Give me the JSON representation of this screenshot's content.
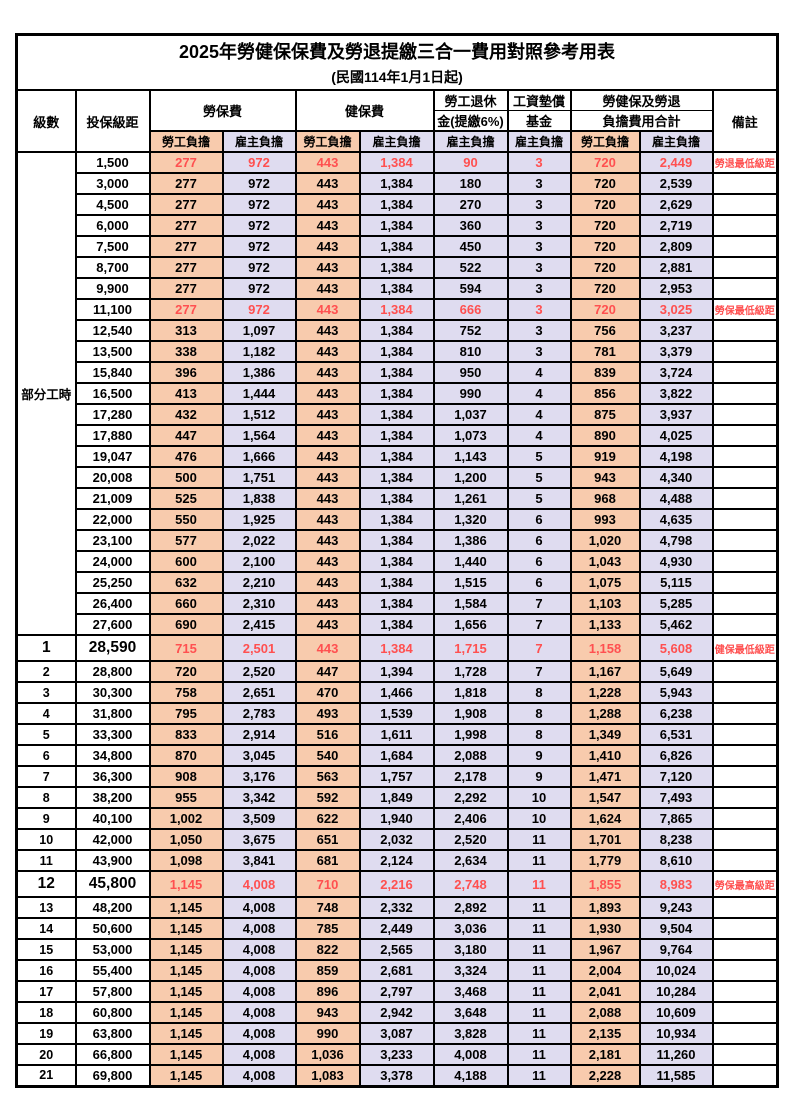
{
  "title": "2025年勞健保保費及勞退提繳三合一費用對照參考用表",
  "subtitle": "(民國114年1月1日起)",
  "header": {
    "grade": "級數",
    "bracket": "投保級距",
    "labor": "勞保費",
    "health": "健保費",
    "pension_line1": "勞工退休",
    "pension_line2": "金(提繳6%)",
    "wage_fund_line1": "工資墊償",
    "wage_fund_line2": "基金",
    "total_line1": "勞健保及勞退",
    "total_line2": "負擔費用合計",
    "remark": "備註",
    "employee": "勞工負擔",
    "employer": "雇主負擔"
  },
  "colors": {
    "employee_bg": "#F8CBAD",
    "employer_bg": "#DFDCF0",
    "highlight_text": "#FF5050",
    "border": "#000000"
  },
  "rows": [
    {
      "grade": "部分工時",
      "grade_rowspan": 23,
      "bracket": "1,500",
      "labor_emp": "277",
      "labor_er": "972",
      "health_emp": "443",
      "health_er": "1,384",
      "pension_er": "90",
      "fund_er": "3",
      "total_emp": "720",
      "total_er": "2,449",
      "remark": "勞退最低級距",
      "red": true
    },
    {
      "bracket": "3,000",
      "labor_emp": "277",
      "labor_er": "972",
      "health_emp": "443",
      "health_er": "1,384",
      "pension_er": "180",
      "fund_er": "3",
      "total_emp": "720",
      "total_er": "2,539"
    },
    {
      "bracket": "4,500",
      "labor_emp": "277",
      "labor_er": "972",
      "health_emp": "443",
      "health_er": "1,384",
      "pension_er": "270",
      "fund_er": "3",
      "total_emp": "720",
      "total_er": "2,629"
    },
    {
      "bracket": "6,000",
      "labor_emp": "277",
      "labor_er": "972",
      "health_emp": "443",
      "health_er": "1,384",
      "pension_er": "360",
      "fund_er": "3",
      "total_emp": "720",
      "total_er": "2,719"
    },
    {
      "bracket": "7,500",
      "labor_emp": "277",
      "labor_er": "972",
      "health_emp": "443",
      "health_er": "1,384",
      "pension_er": "450",
      "fund_er": "3",
      "total_emp": "720",
      "total_er": "2,809"
    },
    {
      "bracket": "8,700",
      "labor_emp": "277",
      "labor_er": "972",
      "health_emp": "443",
      "health_er": "1,384",
      "pension_er": "522",
      "fund_er": "3",
      "total_emp": "720",
      "total_er": "2,881"
    },
    {
      "bracket": "9,900",
      "labor_emp": "277",
      "labor_er": "972",
      "health_emp": "443",
      "health_er": "1,384",
      "pension_er": "594",
      "fund_er": "3",
      "total_emp": "720",
      "total_er": "2,953"
    },
    {
      "bracket": "11,100",
      "labor_emp": "277",
      "labor_er": "972",
      "health_emp": "443",
      "health_er": "1,384",
      "pension_er": "666",
      "fund_er": "3",
      "total_emp": "720",
      "total_er": "3,025",
      "remark": "勞保最低級距",
      "red": true
    },
    {
      "bracket": "12,540",
      "labor_emp": "313",
      "labor_er": "1,097",
      "health_emp": "443",
      "health_er": "1,384",
      "pension_er": "752",
      "fund_er": "3",
      "total_emp": "756",
      "total_er": "3,237"
    },
    {
      "bracket": "13,500",
      "labor_emp": "338",
      "labor_er": "1,182",
      "health_emp": "443",
      "health_er": "1,384",
      "pension_er": "810",
      "fund_er": "3",
      "total_emp": "781",
      "total_er": "3,379"
    },
    {
      "bracket": "15,840",
      "labor_emp": "396",
      "labor_er": "1,386",
      "health_emp": "443",
      "health_er": "1,384",
      "pension_er": "950",
      "fund_er": "4",
      "total_emp": "839",
      "total_er": "3,724"
    },
    {
      "bracket": "16,500",
      "labor_emp": "413",
      "labor_er": "1,444",
      "health_emp": "443",
      "health_er": "1,384",
      "pension_er": "990",
      "fund_er": "4",
      "total_emp": "856",
      "total_er": "3,822"
    },
    {
      "bracket": "17,280",
      "labor_emp": "432",
      "labor_er": "1,512",
      "health_emp": "443",
      "health_er": "1,384",
      "pension_er": "1,037",
      "fund_er": "4",
      "total_emp": "875",
      "total_er": "3,937"
    },
    {
      "bracket": "17,880",
      "labor_emp": "447",
      "labor_er": "1,564",
      "health_emp": "443",
      "health_er": "1,384",
      "pension_er": "1,073",
      "fund_er": "4",
      "total_emp": "890",
      "total_er": "4,025"
    },
    {
      "bracket": "19,047",
      "labor_emp": "476",
      "labor_er": "1,666",
      "health_emp": "443",
      "health_er": "1,384",
      "pension_er": "1,143",
      "fund_er": "5",
      "total_emp": "919",
      "total_er": "4,198"
    },
    {
      "bracket": "20,008",
      "labor_emp": "500",
      "labor_er": "1,751",
      "health_emp": "443",
      "health_er": "1,384",
      "pension_er": "1,200",
      "fund_er": "5",
      "total_emp": "943",
      "total_er": "4,340"
    },
    {
      "bracket": "21,009",
      "labor_emp": "525",
      "labor_er": "1,838",
      "health_emp": "443",
      "health_er": "1,384",
      "pension_er": "1,261",
      "fund_er": "5",
      "total_emp": "968",
      "total_er": "4,488"
    },
    {
      "bracket": "22,000",
      "labor_emp": "550",
      "labor_er": "1,925",
      "health_emp": "443",
      "health_er": "1,384",
      "pension_er": "1,320",
      "fund_er": "6",
      "total_emp": "993",
      "total_er": "4,635"
    },
    {
      "bracket": "23,100",
      "labor_emp": "577",
      "labor_er": "2,022",
      "health_emp": "443",
      "health_er": "1,384",
      "pension_er": "1,386",
      "fund_er": "6",
      "total_emp": "1,020",
      "total_er": "4,798"
    },
    {
      "bracket": "24,000",
      "labor_emp": "600",
      "labor_er": "2,100",
      "health_emp": "443",
      "health_er": "1,384",
      "pension_er": "1,440",
      "fund_er": "6",
      "total_emp": "1,043",
      "total_er": "4,930"
    },
    {
      "bracket": "25,250",
      "labor_emp": "632",
      "labor_er": "2,210",
      "health_emp": "443",
      "health_er": "1,384",
      "pension_er": "1,515",
      "fund_er": "6",
      "total_emp": "1,075",
      "total_er": "5,115"
    },
    {
      "bracket": "26,400",
      "labor_emp": "660",
      "labor_er": "2,310",
      "health_emp": "443",
      "health_er": "1,384",
      "pension_er": "1,584",
      "fund_er": "7",
      "total_emp": "1,103",
      "total_er": "5,285"
    },
    {
      "bracket": "27,600",
      "labor_emp": "690",
      "labor_er": "2,415",
      "health_emp": "443",
      "health_er": "1,384",
      "pension_er": "1,656",
      "fund_er": "7",
      "total_emp": "1,133",
      "total_er": "5,462"
    },
    {
      "grade": "1",
      "bracket": "28,590",
      "labor_emp": "715",
      "labor_er": "2,501",
      "health_emp": "443",
      "health_er": "1,384",
      "pension_er": "1,715",
      "fund_er": "7",
      "total_emp": "1,158",
      "total_er": "5,608",
      "remark": "健保最低級距",
      "red": true,
      "em": true
    },
    {
      "grade": "2",
      "bracket": "28,800",
      "labor_emp": "720",
      "labor_er": "2,520",
      "health_emp": "447",
      "health_er": "1,394",
      "pension_er": "1,728",
      "fund_er": "7",
      "total_emp": "1,167",
      "total_er": "5,649"
    },
    {
      "grade": "3",
      "bracket": "30,300",
      "labor_emp": "758",
      "labor_er": "2,651",
      "health_emp": "470",
      "health_er": "1,466",
      "pension_er": "1,818",
      "fund_er": "8",
      "total_emp": "1,228",
      "total_er": "5,943"
    },
    {
      "grade": "4",
      "bracket": "31,800",
      "labor_emp": "795",
      "labor_er": "2,783",
      "health_emp": "493",
      "health_er": "1,539",
      "pension_er": "1,908",
      "fund_er": "8",
      "total_emp": "1,288",
      "total_er": "6,238"
    },
    {
      "grade": "5",
      "bracket": "33,300",
      "labor_emp": "833",
      "labor_er": "2,914",
      "health_emp": "516",
      "health_er": "1,611",
      "pension_er": "1,998",
      "fund_er": "8",
      "total_emp": "1,349",
      "total_er": "6,531"
    },
    {
      "grade": "6",
      "bracket": "34,800",
      "labor_emp": "870",
      "labor_er": "3,045",
      "health_emp": "540",
      "health_er": "1,684",
      "pension_er": "2,088",
      "fund_er": "9",
      "total_emp": "1,410",
      "total_er": "6,826"
    },
    {
      "grade": "7",
      "bracket": "36,300",
      "labor_emp": "908",
      "labor_er": "3,176",
      "health_emp": "563",
      "health_er": "1,757",
      "pension_er": "2,178",
      "fund_er": "9",
      "total_emp": "1,471",
      "total_er": "7,120"
    },
    {
      "grade": "8",
      "bracket": "38,200",
      "labor_emp": "955",
      "labor_er": "3,342",
      "health_emp": "592",
      "health_er": "1,849",
      "pension_er": "2,292",
      "fund_er": "10",
      "total_emp": "1,547",
      "total_er": "7,493"
    },
    {
      "grade": "9",
      "bracket": "40,100",
      "labor_emp": "1,002",
      "labor_er": "3,509",
      "health_emp": "622",
      "health_er": "1,940",
      "pension_er": "2,406",
      "fund_er": "10",
      "total_emp": "1,624",
      "total_er": "7,865"
    },
    {
      "grade": "10",
      "bracket": "42,000",
      "labor_emp": "1,050",
      "labor_er": "3,675",
      "health_emp": "651",
      "health_er": "2,032",
      "pension_er": "2,520",
      "fund_er": "11",
      "total_emp": "1,701",
      "total_er": "8,238"
    },
    {
      "grade": "11",
      "bracket": "43,900",
      "labor_emp": "1,098",
      "labor_er": "3,841",
      "health_emp": "681",
      "health_er": "2,124",
      "pension_er": "2,634",
      "fund_er": "11",
      "total_emp": "1,779",
      "total_er": "8,610"
    },
    {
      "grade": "12",
      "bracket": "45,800",
      "labor_emp": "1,145",
      "labor_er": "4,008",
      "health_emp": "710",
      "health_er": "2,216",
      "pension_er": "2,748",
      "fund_er": "11",
      "total_emp": "1,855",
      "total_er": "8,983",
      "remark": "勞保最高級距",
      "red": true,
      "em": true
    },
    {
      "grade": "13",
      "bracket": "48,200",
      "labor_emp": "1,145",
      "labor_er": "4,008",
      "health_emp": "748",
      "health_er": "2,332",
      "pension_er": "2,892",
      "fund_er": "11",
      "total_emp": "1,893",
      "total_er": "9,243"
    },
    {
      "grade": "14",
      "bracket": "50,600",
      "labor_emp": "1,145",
      "labor_er": "4,008",
      "health_emp": "785",
      "health_er": "2,449",
      "pension_er": "3,036",
      "fund_er": "11",
      "total_emp": "1,930",
      "total_er": "9,504"
    },
    {
      "grade": "15",
      "bracket": "53,000",
      "labor_emp": "1,145",
      "labor_er": "4,008",
      "health_emp": "822",
      "health_er": "2,565",
      "pension_er": "3,180",
      "fund_er": "11",
      "total_emp": "1,967",
      "total_er": "9,764"
    },
    {
      "grade": "16",
      "bracket": "55,400",
      "labor_emp": "1,145",
      "labor_er": "4,008",
      "health_emp": "859",
      "health_er": "2,681",
      "pension_er": "3,324",
      "fund_er": "11",
      "total_emp": "2,004",
      "total_er": "10,024"
    },
    {
      "grade": "17",
      "bracket": "57,800",
      "labor_emp": "1,145",
      "labor_er": "4,008",
      "health_emp": "896",
      "health_er": "2,797",
      "pension_er": "3,468",
      "fund_er": "11",
      "total_emp": "2,041",
      "total_er": "10,284"
    },
    {
      "grade": "18",
      "bracket": "60,800",
      "labor_emp": "1,145",
      "labor_er": "4,008",
      "health_emp": "943",
      "health_er": "2,942",
      "pension_er": "3,648",
      "fund_er": "11",
      "total_emp": "2,088",
      "total_er": "10,609"
    },
    {
      "grade": "19",
      "bracket": "63,800",
      "labor_emp": "1,145",
      "labor_er": "4,008",
      "health_emp": "990",
      "health_er": "3,087",
      "pension_er": "3,828",
      "fund_er": "11",
      "total_emp": "2,135",
      "total_er": "10,934"
    },
    {
      "grade": "20",
      "bracket": "66,800",
      "labor_emp": "1,145",
      "labor_er": "4,008",
      "health_emp": "1,036",
      "health_er": "3,233",
      "pension_er": "4,008",
      "fund_er": "11",
      "total_emp": "2,181",
      "total_er": "11,260"
    },
    {
      "grade": "21",
      "bracket": "69,800",
      "labor_emp": "1,145",
      "labor_er": "4,008",
      "health_emp": "1,083",
      "health_er": "3,378",
      "pension_er": "4,188",
      "fund_er": "11",
      "total_emp": "2,228",
      "total_er": "11,585"
    }
  ]
}
